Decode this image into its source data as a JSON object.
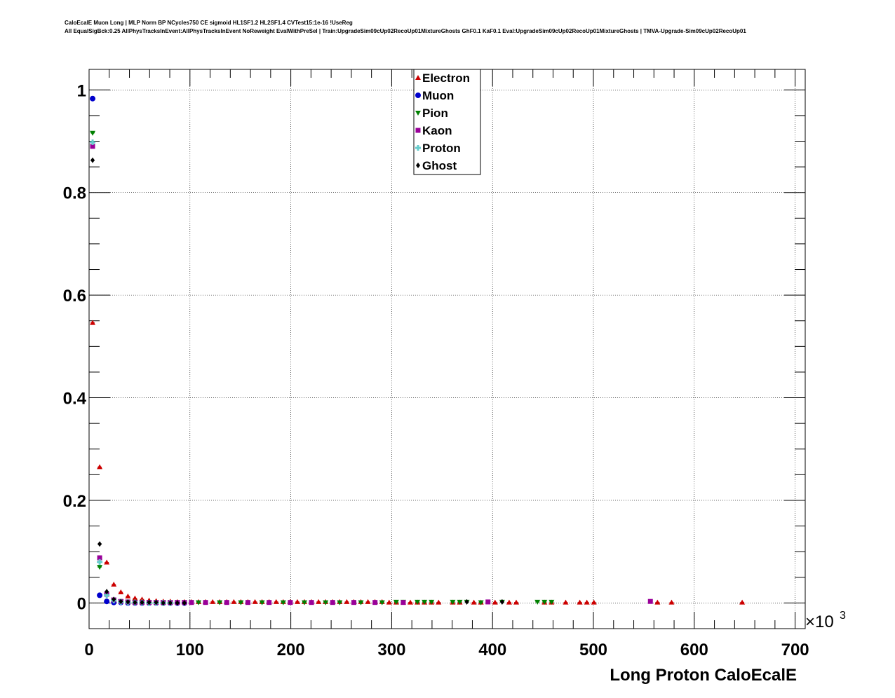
{
  "header": {
    "title_line1": "CaloEcalE Muon Long | MLP Norm BP NCycles750 CE sigmoid HL1SF1.2 HL2SF1.4 CVTest15:1e-16 !UseReg",
    "title_line2": "All EqualSigBck:0.25 AllPhysTracksInEvent:AllPhysTracksInEvent NoReweight EvalWithPreSel | Train:UpgradeSim09cUp02RecoUp01MixtureGhosts GhF0.1 KaF0.1 Eval:UpgradeSim09cUp02RecoUp01MixtureGhosts | TMVA-Upgrade-Sim09cUp02RecoUp01"
  },
  "chart_data": {
    "type": "scatter",
    "title": "CaloEcalE Muon Long | MLP Norm BP NCycles750 CE sigmoid HL1SF1.2 HL2SF1.4 CVTest15:1e-16 !UseReg",
    "xlabel": "Long Proton CaloEcalE",
    "ylabel": "",
    "x_scale_label": "×10",
    "x_scale_exponent": "3",
    "xlim": [
      0,
      710
    ],
    "ylim": [
      -0.05,
      1.04
    ],
    "x_ticks": [
      0,
      100,
      200,
      300,
      400,
      500,
      600,
      700
    ],
    "x_tick_labels": [
      "0",
      "100",
      "200",
      "300",
      "400",
      "500",
      "600",
      "700"
    ],
    "y_ticks": [
      0,
      0.2,
      0.4,
      0.6,
      0.8,
      1
    ],
    "y_tick_labels": [
      "0",
      "0.2",
      "0.4",
      "0.6",
      "0.8",
      "1"
    ],
    "grid": true,
    "legend_position": "top-center",
    "series": [
      {
        "name": "Electron",
        "marker": "triangle-up",
        "color": "#cc0000",
        "x": [
          3.5,
          10.5,
          17.5,
          24.5,
          31.5,
          38.5,
          45.5,
          52.5,
          59.5,
          66.5,
          73.5,
          80.5,
          87.5,
          94.5,
          101.5,
          108.5,
          115.5,
          122.5,
          129.5,
          136.5,
          143.5,
          150.5,
          157.5,
          164.5,
          171.5,
          178.5,
          185.5,
          192.5,
          199.5,
          206.5,
          213.5,
          220.5,
          227.5,
          234.5,
          241.5,
          248.5,
          255.5,
          262.5,
          269.5,
          276.5,
          283.5,
          290.5,
          297.5,
          304.5,
          311.5,
          318.5,
          325.5,
          332.5,
          339.5,
          346.5,
          360.5,
          367.5,
          381.5,
          388.5,
          402.5,
          416.5,
          423.5,
          451.5,
          458.5,
          472.5,
          486.5,
          493.5,
          500.5,
          563.5,
          577.5,
          647.5
        ],
        "y": [
          0.546,
          0.265,
          0.079,
          0.036,
          0.021,
          0.013,
          0.009,
          0.007,
          0.005,
          0.004,
          0.003,
          0.003,
          0.002,
          0.002,
          0.002,
          0.002,
          0.002,
          0.002,
          0.002,
          0.002,
          0.002,
          0.002,
          0.002,
          0.002,
          0.002,
          0.002,
          0.002,
          0.002,
          0.002,
          0.002,
          0.002,
          0.002,
          0.002,
          0.002,
          0.002,
          0.002,
          0.002,
          0.002,
          0.002,
          0.002,
          0.002,
          0.002,
          0.001,
          0.001,
          0.001,
          0.001,
          0.001,
          0.001,
          0.001,
          0.001,
          0.001,
          0.001,
          0.001,
          0.001,
          0.001,
          0.001,
          0.001,
          0.001,
          0.001,
          0.001,
          0.001,
          0.001,
          0.001,
          0.001,
          0.001,
          0.001
        ]
      },
      {
        "name": "Muon",
        "marker": "circle",
        "color": "#0000cc",
        "x": [
          3.5,
          10.5,
          17.5,
          24.5,
          31.5,
          38.5,
          45.5,
          52.5,
          59.5,
          66.5,
          73.5,
          80.5,
          87.5,
          94.5
        ],
        "y": [
          0.983,
          0.015,
          0.003,
          0.001,
          0.001,
          0.0,
          0.0,
          0.0,
          0.0,
          0.0,
          0.0,
          0.0,
          0.0,
          0.0
        ]
      },
      {
        "name": "Pion",
        "marker": "triangle-down",
        "color": "#008000",
        "x": [
          3.5,
          10.5,
          17.5,
          24.5,
          31.5,
          38.5,
          45.5,
          52.5,
          59.5,
          66.5,
          73.5,
          80.5,
          87.5,
          94.5,
          101.5,
          108.5,
          129.5,
          150.5,
          171.5,
          192.5,
          213.5,
          234.5,
          248.5,
          269.5,
          290.5,
          304.5,
          311.5,
          325.5,
          332.5,
          339.5,
          360.5,
          367.5,
          374.5,
          388.5,
          409.5,
          444.5,
          451.5,
          458.5
        ],
        "y": [
          0.916,
          0.07,
          0.014,
          0.006,
          0.003,
          0.002,
          0.002,
          0.001,
          0.001,
          0.001,
          0.001,
          0.001,
          0.001,
          0.001,
          0.001,
          0.001,
          0.001,
          0.001,
          0.001,
          0.001,
          0.001,
          0.001,
          0.001,
          0.001,
          0.001,
          0.002,
          0.002,
          0.002,
          0.002,
          0.002,
          0.002,
          0.002,
          0.002,
          0.001,
          0.002,
          0.002,
          0.002,
          0.002
        ]
      },
      {
        "name": "Kaon",
        "marker": "square",
        "color": "#990099",
        "x": [
          3.5,
          10.5,
          17.5,
          24.5,
          31.5,
          38.5,
          45.5,
          52.5,
          59.5,
          66.5,
          73.5,
          80.5,
          87.5,
          94.5,
          101.5,
          115.5,
          136.5,
          157.5,
          178.5,
          199.5,
          220.5,
          241.5,
          262.5,
          283.5,
          311.5,
          395.5,
          556.5
        ],
        "y": [
          0.89,
          0.088,
          0.017,
          0.006,
          0.003,
          0.002,
          0.001,
          0.001,
          0.001,
          0.001,
          0.001,
          0.001,
          0.001,
          0.001,
          0.001,
          0.001,
          0.001,
          0.001,
          0.001,
          0.001,
          0.001,
          0.001,
          0.001,
          0.001,
          0.001,
          0.002,
          0.003
        ]
      },
      {
        "name": "Proton",
        "marker": "cross",
        "color": "#66cccc",
        "x": [
          3.5,
          10.5,
          17.5,
          24.5,
          31.5,
          38.5,
          45.5,
          52.5,
          59.5,
          66.5,
          73.5,
          80.5
        ],
        "y": [
          0.898,
          0.08,
          0.015,
          0.005,
          0.002,
          0.001,
          0.001,
          0.001,
          0.0,
          0.0,
          0.0,
          0.0
        ]
      },
      {
        "name": "Ghost",
        "marker": "diamond",
        "color": "#000000",
        "x": [
          3.5,
          10.5,
          17.5,
          24.5,
          31.5,
          38.5,
          45.5,
          52.5,
          59.5,
          66.5,
          73.5,
          80.5,
          87.5,
          94.5,
          374.5,
          409.5
        ],
        "y": [
          0.863,
          0.115,
          0.022,
          0.007,
          0.003,
          0.002,
          0.001,
          0.001,
          0.001,
          0.001,
          0.0,
          0.0,
          0.0,
          0.0,
          0.002,
          0.002
        ]
      }
    ]
  }
}
